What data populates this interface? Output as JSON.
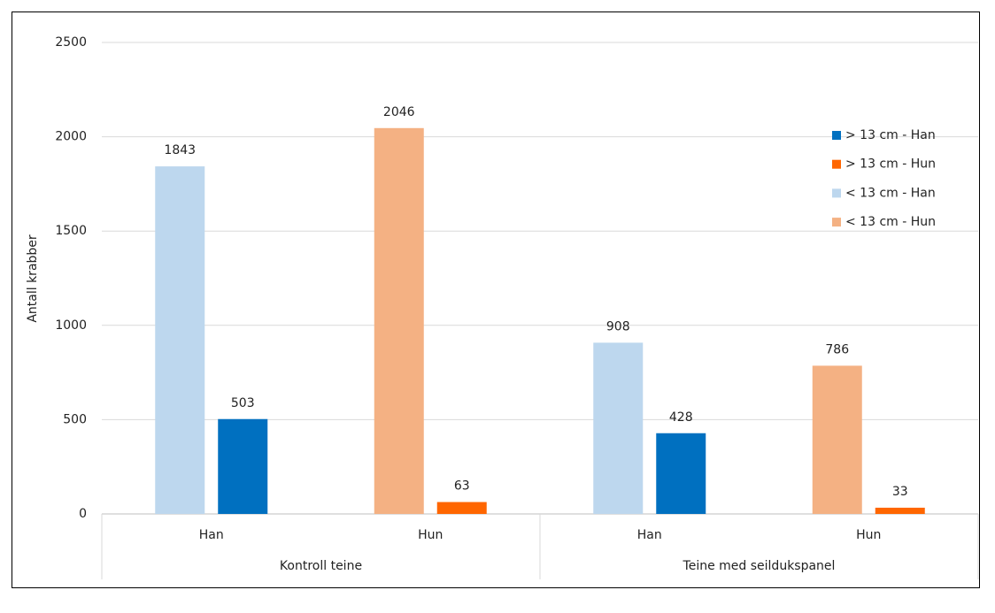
{
  "chart_data": {
    "type": "bar",
    "y_label": "Antall krabber",
    "categories": [
      "Han",
      "Hun",
      "Han",
      "Hun"
    ],
    "groups": [
      "Kontroll teine",
      "Teine med seildukspanel"
    ],
    "series": [
      {
        "name": "> 13 cm - Han",
        "color": "#0070c0",
        "values": [
          503,
          null,
          428,
          null
        ]
      },
      {
        "name": "> 13 cm - Hun",
        "color": "#ff6600",
        "values": [
          null,
          63,
          null,
          33
        ]
      },
      {
        "name": "< 13 cm - Han",
        "color": "#bdd7ee",
        "values": [
          1843,
          null,
          908,
          null
        ]
      },
      {
        "name": "< 13 cm - Hun",
        "color": "#f4b183",
        "values": [
          null,
          2046,
          null,
          786
        ]
      }
    ],
    "ylim": [
      0,
      2500
    ],
    "yticks": [
      0,
      500,
      1000,
      1500,
      2000,
      2500
    ],
    "grid": true,
    "legend": "upper right"
  }
}
